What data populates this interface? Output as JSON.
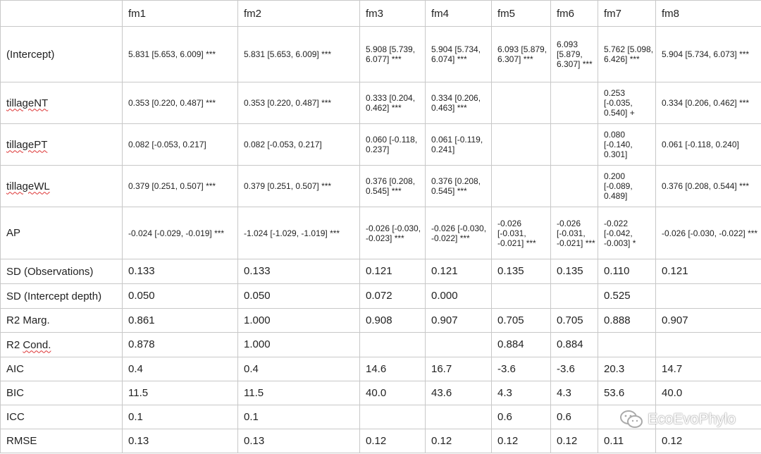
{
  "columns": [
    "",
    "fm1",
    "fm2",
    "fm3",
    "fm4",
    "fm5",
    "fm6",
    "fm7",
    "fm8"
  ],
  "rows": [
    {
      "label": "(Intercept)",
      "cells": [
        "5.831 [5.653, 6.009] ***",
        "5.831 [5.653, 6.009] ***",
        "5.908 [5.739, 6.077] ***",
        "5.904 [5.734, 6.074] ***",
        "6.093 [5.879, 6.307] ***",
        "6.093 [5.879, 6.307] ***",
        "5.762 [5.098, 6.426] ***",
        "5.904 [5.734, 6.073] ***"
      ]
    },
    {
      "label": "tillageNT",
      "cells": [
        "0.353 [0.220, 0.487] ***",
        "0.353 [0.220, 0.487] ***",
        "0.333 [0.204, 0.462] ***",
        "0.334 [0.206, 0.463] ***",
        "",
        "",
        "0.253 [-0.035, 0.540] +",
        "0.334 [0.206, 0.462] ***"
      ]
    },
    {
      "label": "tillagePT",
      "cells": [
        "0.082 [-0.053, 0.217]",
        "0.082 [-0.053, 0.217]",
        "0.060 [-0.118, 0.237]",
        "0.061 [-0.119, 0.241]",
        "",
        "",
        "0.080 [-0.140, 0.301]",
        "0.061 [-0.118, 0.240]"
      ]
    },
    {
      "label": "tillageWL",
      "cells": [
        "0.379 [0.251, 0.507] ***",
        "0.379 [0.251, 0.507] ***",
        "0.376 [0.208, 0.545] ***",
        "0.376 [0.208, 0.545] ***",
        "",
        "",
        "0.200 [-0.089, 0.489]",
        "0.376 [0.208, 0.544] ***"
      ]
    },
    {
      "label": "AP",
      "cells": [
        "-0.024 [-0.029, -0.019] ***",
        "-1.024 [-1.029, -1.019] ***",
        "-0.026 [-0.030, -0.023] ***",
        "-0.026 [-0.030, -0.022] ***",
        "-0.026 [-0.031, -0.021] ***",
        "-0.026 [-0.031, -0.021] ***",
        "-0.022 [-0.042, -0.003] *",
        "-0.026 [-0.030, -0.022] ***"
      ]
    },
    {
      "label": "SD (Observations)",
      "cells": [
        "0.133",
        "0.133",
        "0.121",
        "0.121",
        "0.135",
        "0.135",
        "0.110",
        "0.121"
      ]
    },
    {
      "label": "SD (Intercept depth)",
      "cells": [
        "0.050",
        "0.050",
        "0.072",
        "0.000",
        "",
        "",
        "0.525",
        ""
      ]
    },
    {
      "label": "R2 Marg.",
      "cells": [
        "0.861",
        "1.000",
        "0.908",
        "0.907",
        "0.705",
        "0.705",
        "0.888",
        "0.907"
      ]
    },
    {
      "label": "R2 Cond.",
      "cells": [
        "0.878",
        "1.000",
        "",
        "",
        "0.884",
        "0.884",
        "",
        ""
      ]
    },
    {
      "label": "AIC",
      "cells": [
        "0.4",
        "0.4",
        "14.6",
        "16.7",
        "-3.6",
        "-3.6",
        "20.3",
        "14.7"
      ]
    },
    {
      "label": "BIC",
      "cells": [
        "11.5",
        "11.5",
        "40.0",
        "43.6",
        "4.3",
        "4.3",
        "53.6",
        "40.0"
      ]
    },
    {
      "label": "ICC",
      "cells": [
        "0.1",
        "0.1",
        "",
        "",
        "0.6",
        "0.6",
        "",
        ""
      ]
    },
    {
      "label": "RMSE",
      "cells": [
        "0.13",
        "0.13",
        "0.12",
        "0.12",
        "0.12",
        "0.12",
        "0.11",
        "0.12"
      ]
    }
  ],
  "watermark": {
    "text": "EcoEvoPhylo",
    "icon": "wechat-icon"
  }
}
